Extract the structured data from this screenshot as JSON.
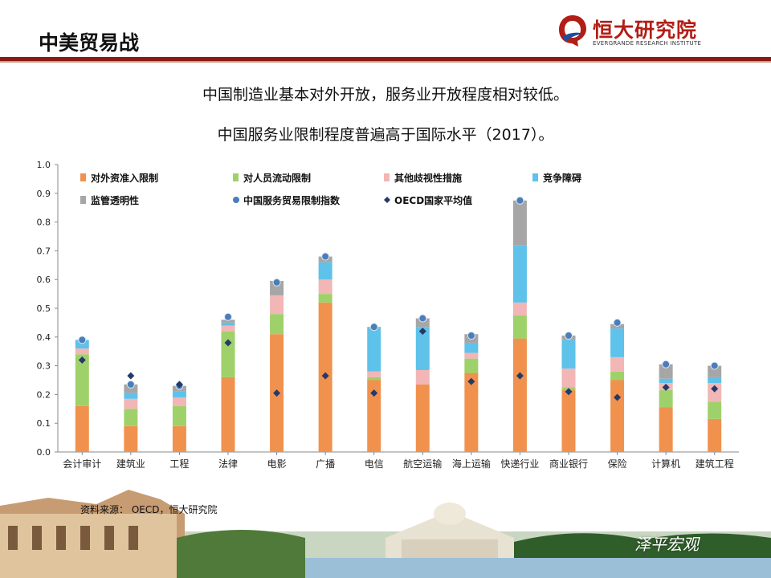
{
  "header": {
    "title": "中美贸易战",
    "logo_text": "恒大研究院",
    "logo_subtitle": "EVERGRANDE RESEARCH INSTITUTE"
  },
  "subtitles": [
    "中国制造业基本对外开放，服务业开放程度相对较低。",
    "中国服务业限制程度普遍高于国际水平（2017）。"
  ],
  "source": "资料来源：  OECD，恒大研究院",
  "watermark": "泽平宏观",
  "chart_data": {
    "type": "bar",
    "stacked": true,
    "categories": [
      "会计审计",
      "建筑业",
      "工程",
      "法律",
      "电影",
      "广播",
      "电信",
      "航空运输",
      "海上运输",
      "快递行业",
      "商业银行",
      "保险",
      "计算机",
      "建筑工程"
    ],
    "series": [
      {
        "name": "对外资准入限制",
        "color": "#f0924e",
        "values": [
          0.16,
          0.09,
          0.09,
          0.26,
          0.41,
          0.52,
          0.25,
          0.235,
          0.275,
          0.395,
          0.215,
          0.25,
          0.155,
          0.115
        ]
      },
      {
        "name": "对人员流动限制",
        "color": "#9fd16a",
        "values": [
          0.18,
          0.06,
          0.07,
          0.16,
          0.07,
          0.03,
          0.01,
          0.0,
          0.05,
          0.08,
          0.01,
          0.03,
          0.06,
          0.06
        ]
      },
      {
        "name": "其他歧视性措施",
        "color": "#f2b6b6",
        "values": [
          0.02,
          0.035,
          0.03,
          0.02,
          0.065,
          0.05,
          0.02,
          0.05,
          0.02,
          0.045,
          0.065,
          0.05,
          0.025,
          0.065
        ]
      },
      {
        "name": "竞争障碍",
        "color": "#5ec2ea",
        "values": [
          0.03,
          0.02,
          0.02,
          0.01,
          0.0,
          0.06,
          0.15,
          0.15,
          0.035,
          0.2,
          0.1,
          0.1,
          0.015,
          0.02
        ]
      },
      {
        "name": "监管透明性",
        "color": "#a6a6a6",
        "values": [
          0.0,
          0.03,
          0.02,
          0.01,
          0.05,
          0.02,
          0.005,
          0.03,
          0.03,
          0.155,
          0.015,
          0.015,
          0.05,
          0.04
        ]
      }
    ],
    "markers": [
      {
        "name": "中国服务贸易限制指数",
        "color": "#4a7ebb",
        "shape": "circle",
        "values": [
          0.39,
          0.235,
          0.23,
          0.47,
          0.59,
          0.68,
          0.435,
          0.465,
          0.405,
          0.875,
          0.405,
          0.45,
          0.305,
          0.3
        ]
      },
      {
        "name": "OECD国家平均值",
        "color": "#243a6b",
        "shape": "diamond",
        "values": [
          0.32,
          0.265,
          0.235,
          0.38,
          0.205,
          0.265,
          0.205,
          0.42,
          0.245,
          0.265,
          0.21,
          0.19,
          0.225,
          0.22
        ]
      }
    ],
    "ylim": [
      0,
      1.0
    ],
    "yticks": [
      "0.0",
      "0.1",
      "0.2",
      "0.3",
      "0.4",
      "0.5",
      "0.6",
      "0.7",
      "0.8",
      "0.9",
      "1.0"
    ],
    "xlabel": "",
    "ylabel": "",
    "grid": false,
    "legend": "top"
  }
}
